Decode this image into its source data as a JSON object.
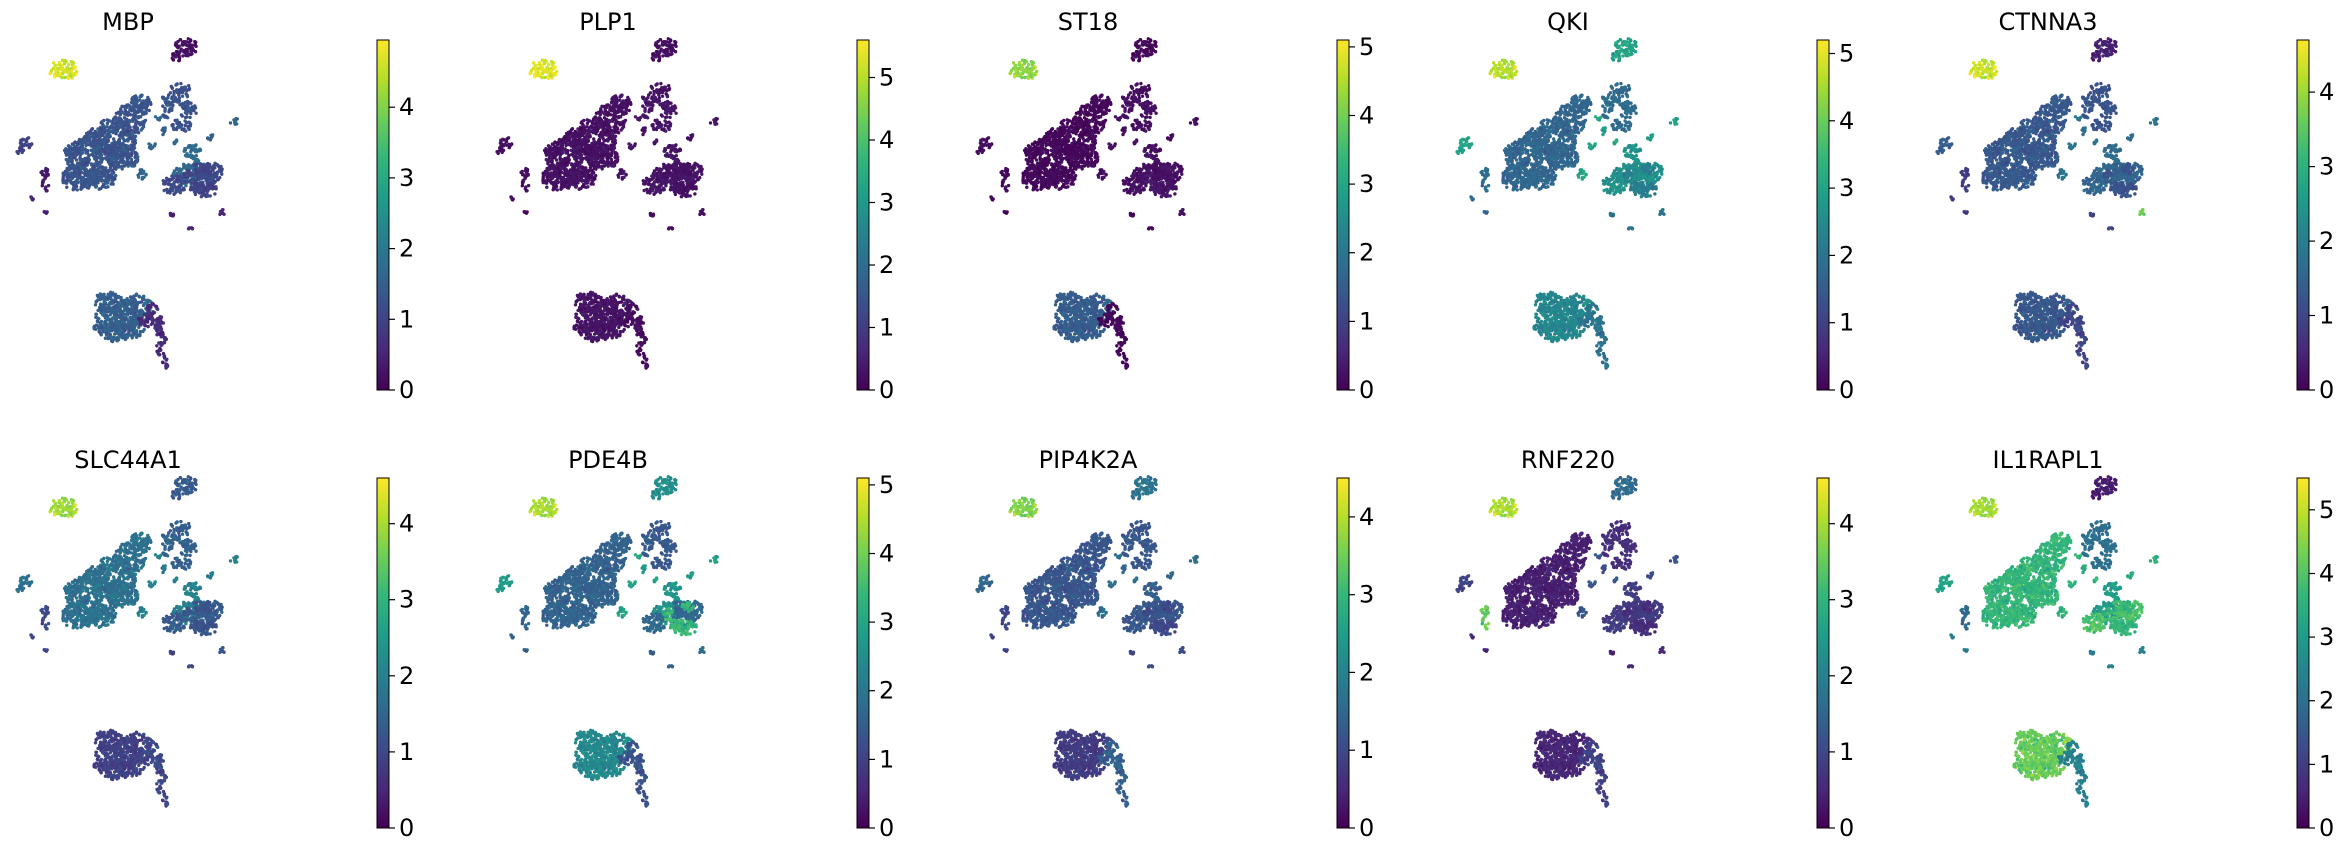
{
  "colormap": {
    "name": "viridis",
    "stops": [
      "#440154",
      "#482878",
      "#3e4989",
      "#31688e",
      "#26828e",
      "#1f9e89",
      "#35b779",
      "#6ece58",
      "#b5de2b",
      "#fde725"
    ]
  },
  "chart_data": [
    {
      "type": "scatter",
      "title": "MBP",
      "colorbar": {
        "ticks": [
          "0",
          "1",
          "2",
          "3",
          "4"
        ],
        "max": 4.95
      },
      "clusters": {
        "c1": 4.6,
        "c2": 0.2,
        "c3": 1.3,
        "c4": 1.25,
        "c5": 1.7,
        "c6": 1.1,
        "c7": 1.0,
        "c8": 1.5,
        "c9": 0.6,
        "c10": 1.6,
        "c11": 1.0,
        "c12": 0.5,
        "c13": 0.3,
        "c14": 0.5,
        "c15": 0.5
      }
    },
    {
      "type": "scatter",
      "title": "PLP1",
      "colorbar": {
        "ticks": [
          "0",
          "1",
          "2",
          "3",
          "4",
          "5"
        ],
        "max": 5.6
      },
      "clusters": {
        "c1": 5.3,
        "c2": 0.2,
        "c3": 0.25,
        "c4": 0.3,
        "c5": 0.3,
        "c6": 0.3,
        "c7": 0.25,
        "c8": 0.3,
        "c9": 0.2,
        "c10": 0.3,
        "c11": 0.25,
        "c12": 0.2,
        "c13": 0.2,
        "c14": 0.2,
        "c15": 0.2
      }
    },
    {
      "type": "scatter",
      "title": "ST18",
      "colorbar": {
        "ticks": [
          "0",
          "1",
          "2",
          "3",
          "4",
          "5"
        ],
        "max": 5.1
      },
      "clusters": {
        "c1": 4.2,
        "c2": 0.1,
        "c3": 0.1,
        "c4": 0.2,
        "c5": 0.2,
        "c6": 0.2,
        "c7": 0.3,
        "c8": 1.5,
        "c9": 0.1,
        "c10": 0.2,
        "c11": 0.2,
        "c12": 0.2,
        "c13": 0.1,
        "c14": 0.1,
        "c15": 0.1
      }
    },
    {
      "type": "scatter",
      "title": "QKI",
      "colorbar": {
        "ticks": [
          "0",
          "1",
          "2",
          "3",
          "4",
          "5"
        ],
        "max": 5.2
      },
      "clusters": {
        "c1": 4.6,
        "c2": 3.0,
        "c3": 1.7,
        "c4": 1.8,
        "c5": 2.6,
        "c6": 2.6,
        "c7": 2.2,
        "c8": 2.4,
        "c9": 2.0,
        "c10": 3.0,
        "c11": 3.0,
        "c12": 2.0,
        "c13": 1.8,
        "c14": 1.8,
        "c15": 2.0
      }
    },
    {
      "type": "scatter",
      "title": "CTNNA3",
      "colorbar": {
        "ticks": [
          "0",
          "1",
          "2",
          "3",
          "4"
        ],
        "max": 4.7
      },
      "clusters": {
        "c1": 4.3,
        "c2": 0.4,
        "c3": 1.3,
        "c4": 1.2,
        "c5": 1.6,
        "c6": 1.5,
        "c7": 1.2,
        "c8": 1.3,
        "c9": 1.0,
        "c10": 1.8,
        "c11": 1.4,
        "c12": 3.6,
        "c13": 0.8,
        "c14": 0.8,
        "c15": 1.0
      }
    },
    {
      "type": "scatter",
      "title": "SLC44A1",
      "colorbar": {
        "ticks": [
          "0",
          "1",
          "2",
          "3",
          "4"
        ],
        "max": 4.6
      },
      "clusters": {
        "c1": 3.9,
        "c2": 1.3,
        "c3": 1.7,
        "c4": 1.4,
        "c5": 2.0,
        "c6": 1.3,
        "c7": 1.2,
        "c8": 0.9,
        "c9": 1.0,
        "c10": 2.0,
        "c11": 1.7,
        "c12": 1.2,
        "c13": 1.0,
        "c14": 1.0,
        "c15": 1.0
      }
    },
    {
      "type": "scatter",
      "title": "PDE4B",
      "colorbar": {
        "ticks": [
          "0",
          "1",
          "2",
          "3",
          "4",
          "5"
        ],
        "max": 5.1
      },
      "clusters": {
        "c1": 4.4,
        "c2": 2.5,
        "c3": 1.6,
        "c4": 1.4,
        "c5": 2.6,
        "c6": 1.7,
        "c7": 3.4,
        "c8": 2.4,
        "c9": 1.3,
        "c10": 2.9,
        "c11": 2.8,
        "c12": 1.8,
        "c13": 1.6,
        "c14": 1.6,
        "c15": 1.6
      }
    },
    {
      "type": "scatter",
      "title": "PIP4K2A",
      "colorbar": {
        "ticks": [
          "0",
          "1",
          "2",
          "3",
          "4"
        ],
        "max": 4.5
      },
      "clusters": {
        "c1": 3.6,
        "c2": 1.7,
        "c3": 1.2,
        "c4": 1.2,
        "c5": 1.3,
        "c6": 1.2,
        "c7": 1.0,
        "c8": 0.8,
        "c9": 1.4,
        "c10": 1.6,
        "c11": 1.5,
        "c12": 1.0,
        "c13": 0.9,
        "c14": 0.9,
        "c15": 1.0
      }
    },
    {
      "type": "scatter",
      "title": "RNF220",
      "colorbar": {
        "ticks": [
          "0",
          "1",
          "2",
          "3",
          "4"
        ],
        "max": 4.6
      },
      "clusters": {
        "c1": 4.0,
        "c2": 1.6,
        "c3": 0.4,
        "c4": 0.6,
        "c5": 0.8,
        "c6": 0.8,
        "c7": 0.6,
        "c8": 0.5,
        "c9": 0.9,
        "c10": 1.2,
        "c11": 0.9,
        "c12": 0.5,
        "c13": 3.4,
        "c14": 0.5,
        "c15": 0.5
      }
    },
    {
      "type": "scatter",
      "title": "IL1RAPL1",
      "colorbar": {
        "ticks": [
          "0",
          "1",
          "2",
          "3",
          "4",
          "5"
        ],
        "max": 5.5
      },
      "clusters": {
        "c1": 4.7,
        "c2": 0.4,
        "c3": 3.6,
        "c4": 2.0,
        "c5": 3.0,
        "c6": 3.9,
        "c7": 3.6,
        "c8": 4.2,
        "c9": 2.4,
        "c10": 3.5,
        "c11": 3.2,
        "c12": 2.4,
        "c13": 1.8,
        "c14": 2.4,
        "c15": 2.4
      }
    }
  ]
}
